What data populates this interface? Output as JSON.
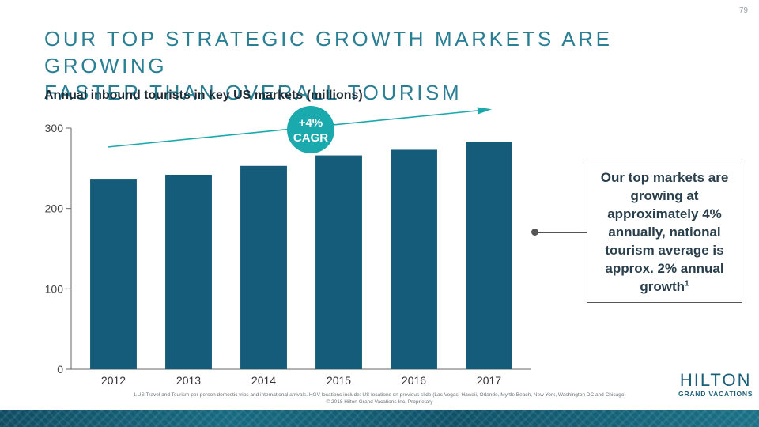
{
  "page_number": "79",
  "title_lines": [
    "Our top strategic growth markets are growing",
    "faster than overall tourism"
  ],
  "subtitle": "Annual inbound tourists in key US markets (millions)",
  "colors": {
    "bar": "#155c7a",
    "accent": "#1aa9ad",
    "title": "#2a7f95",
    "axis": "#666666"
  },
  "chart_data": {
    "type": "bar",
    "title": "Annual inbound tourists in key US markets (millions)",
    "categories": [
      "2012",
      "2013",
      "2014",
      "2015",
      "2016",
      "2017"
    ],
    "values": [
      236,
      242,
      253,
      266,
      273,
      283
    ],
    "ylim": [
      0,
      300
    ],
    "yticks": [
      0,
      100,
      200,
      300
    ],
    "xlabel": "",
    "ylabel": "",
    "grid": false,
    "legend": "none",
    "annotation": {
      "badge_line1": "+4%",
      "badge_line2": "CAGR",
      "trend_arrow": "up-right"
    }
  },
  "callout": {
    "text": "Our top markets are growing at approximately 4% annually, national tourism average is approx. 2% annual growth",
    "superscript": "1"
  },
  "footnote_lines": [
    "1.US Travel and Tourism per-person domestic trips and international arrivals. HGV locations include: US locations on previous slide (Las Vegas, Hawaii, Orlando, Myrtle Beach, New York, Washington DC and Chicago)",
    "© 2018 Hilton Grand Vacations Inc. Proprietary"
  ],
  "logo": {
    "main": "HILTON",
    "sub": "GRAND VACATIONS"
  }
}
